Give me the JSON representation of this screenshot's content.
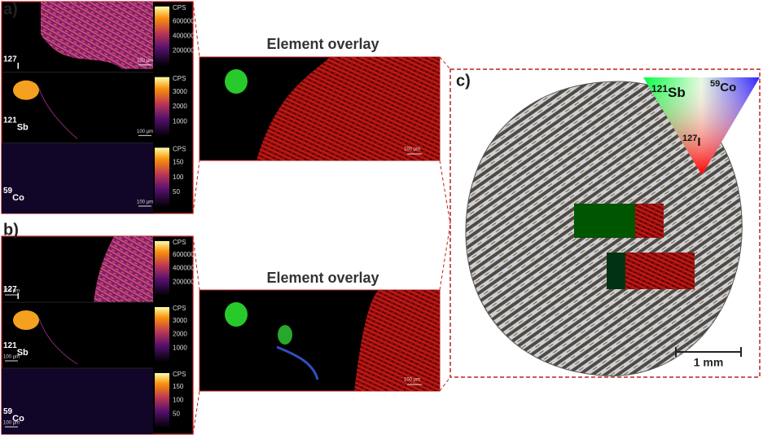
{
  "panels": [
    {
      "label": "a)",
      "maps": [
        {
          "mass": "127",
          "element": "I",
          "colorbar": {
            "unit": "CPS",
            "ticks": [
              "600000",
              "400000",
              "200000"
            ]
          },
          "scale": "100 µm"
        },
        {
          "mass": "121",
          "element": "Sb",
          "colorbar": {
            "unit": "CPS",
            "ticks": [
              "3000",
              "2000",
              "1000"
            ]
          },
          "scale": "100 µm"
        },
        {
          "mass": "59",
          "element": "Co",
          "colorbar": {
            "unit": "CPS",
            "ticks": [
              "150",
              "100",
              "50"
            ]
          },
          "scale": "100 µm"
        }
      ],
      "overlay": {
        "title": "Element overlay",
        "scale": "100 µm"
      }
    },
    {
      "label": "b)",
      "maps": [
        {
          "mass": "127",
          "element": "I",
          "colorbar": {
            "unit": "CPS",
            "ticks": [
              "600000",
              "400000",
              "200000"
            ]
          },
          "scale": "100 µm"
        },
        {
          "mass": "121",
          "element": "Sb",
          "colorbar": {
            "unit": "CPS",
            "ticks": [
              "3000",
              "2000",
              "1000"
            ]
          },
          "scale": "100 µm"
        },
        {
          "mass": "59",
          "element": "Co",
          "colorbar": {
            "unit": "CPS",
            "ticks": [
              "150",
              "100",
              "50"
            ]
          },
          "scale": "100 µm"
        }
      ],
      "overlay": {
        "title": "Element overlay",
        "scale": "100 µm"
      }
    }
  ],
  "panel_c": {
    "label": "c)",
    "triangle": [
      {
        "mass": "121",
        "element": "Sb"
      },
      {
        "mass": "59",
        "element": "Co"
      },
      {
        "mass": "127",
        "element": "I"
      }
    ],
    "scale": "1 mm"
  }
}
